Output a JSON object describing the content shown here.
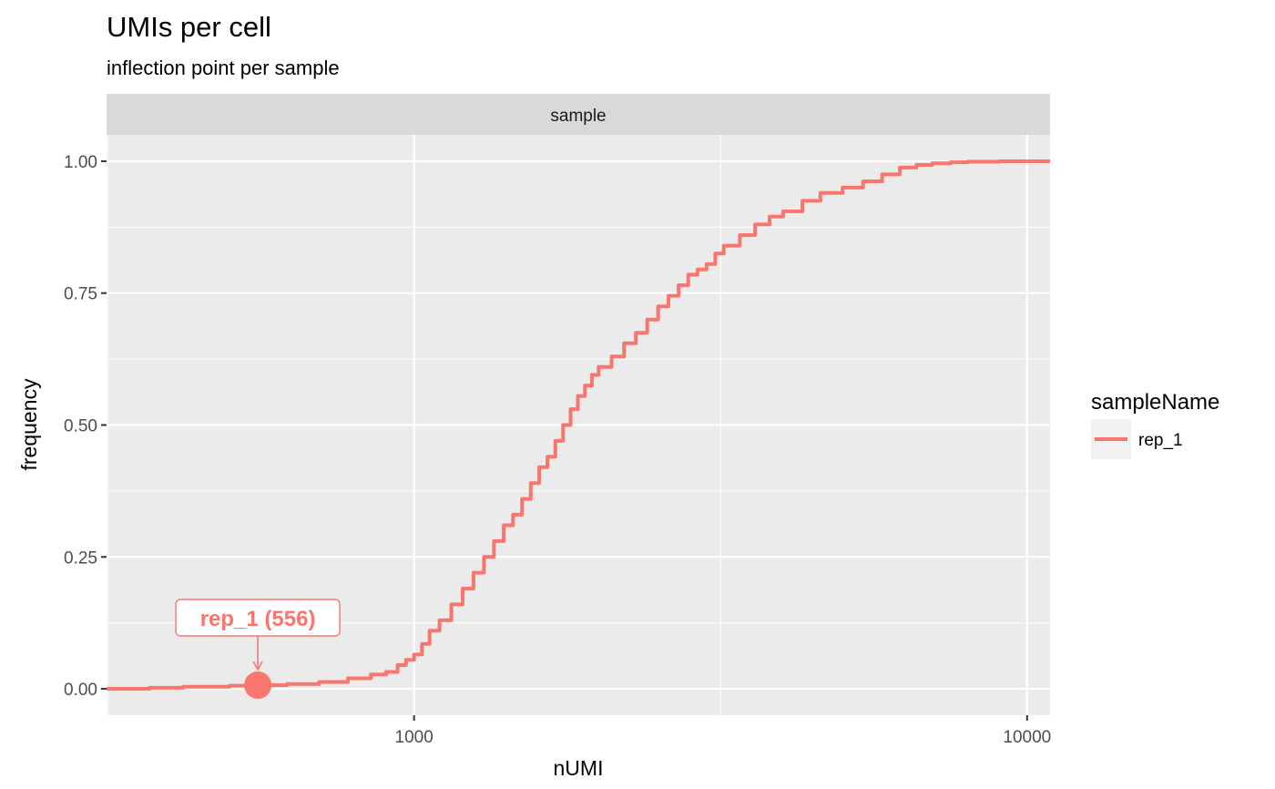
{
  "chart_data": {
    "type": "line",
    "title": "UMIs per cell",
    "subtitle": "inflection point per sample",
    "facet_label": "sample",
    "xlabel": "nUMI",
    "ylabel": "frequency",
    "x_scale": "log10",
    "xlim": [
      315,
      10900
    ],
    "ylim": [
      -0.05,
      1.05
    ],
    "x_ticks": [
      {
        "value": 1000,
        "label": "1000"
      },
      {
        "value": 10000,
        "label": "10000"
      }
    ],
    "y_ticks": [
      {
        "value": 0,
        "label": "0.00"
      },
      {
        "value": 0.25,
        "label": "0.25"
      },
      {
        "value": 0.5,
        "label": "0.50"
      },
      {
        "value": 0.75,
        "label": "0.75"
      },
      {
        "value": 1,
        "label": "1.00"
      }
    ],
    "grid": true,
    "legend": {
      "title": "sampleName",
      "position": "right"
    },
    "series": [
      {
        "name": "rep_1",
        "color": "#F8766D",
        "x": [
          315,
          370,
          420,
          500,
          556,
          620,
          700,
          780,
          850,
          900,
          940,
          970,
          1000,
          1030,
          1060,
          1100,
          1150,
          1200,
          1250,
          1300,
          1350,
          1400,
          1450,
          1500,
          1550,
          1600,
          1650,
          1700,
          1750,
          1800,
          1850,
          1900,
          1950,
          2000,
          2100,
          2200,
          2300,
          2400,
          2500,
          2600,
          2700,
          2800,
          2900,
          3000,
          3100,
          3200,
          3400,
          3600,
          3800,
          4000,
          4300,
          4600,
          5000,
          5400,
          5800,
          6200,
          6600,
          7000,
          7500,
          8000,
          9000,
          10000,
          10900
        ],
        "y": [
          0,
          0.002,
          0.004,
          0.006,
          0.007,
          0.009,
          0.013,
          0.02,
          0.027,
          0.032,
          0.045,
          0.055,
          0.065,
          0.085,
          0.11,
          0.13,
          0.16,
          0.19,
          0.22,
          0.25,
          0.28,
          0.31,
          0.33,
          0.36,
          0.39,
          0.42,
          0.44,
          0.47,
          0.5,
          0.53,
          0.555,
          0.575,
          0.595,
          0.61,
          0.63,
          0.655,
          0.675,
          0.7,
          0.725,
          0.745,
          0.765,
          0.785,
          0.795,
          0.805,
          0.825,
          0.84,
          0.86,
          0.88,
          0.895,
          0.905,
          0.925,
          0.94,
          0.95,
          0.962,
          0.975,
          0.988,
          0.993,
          0.996,
          0.998,
          0.999,
          1.0,
          1.0,
          1.0
        ]
      }
    ],
    "annotations": [
      {
        "label": "rep_1 (556)",
        "x": 556,
        "y": 0.007,
        "color": "#F8766D"
      }
    ]
  }
}
